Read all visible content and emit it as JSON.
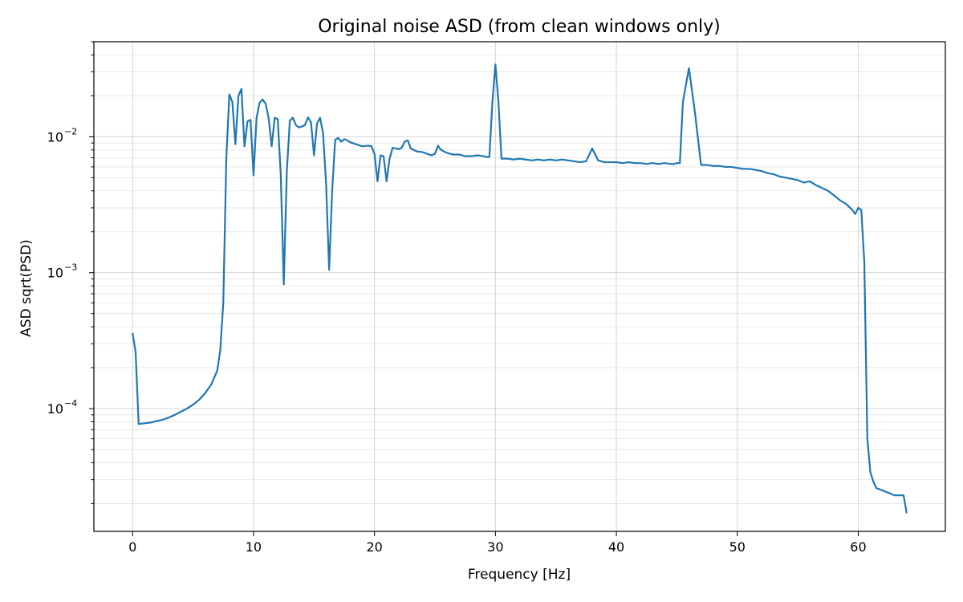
{
  "chart_data": {
    "type": "line",
    "title": "Original noise ASD (from clean windows only)",
    "xlabel": "Frequency [Hz]",
    "ylabel": "ASD sqrt(PSD)",
    "xscale": "linear",
    "yscale": "log",
    "xlim": [
      -3.2,
      67.2
    ],
    "ylim": [
      1.25e-05,
      0.05
    ],
    "xticks": [
      0,
      10,
      20,
      30,
      40,
      50,
      60
    ],
    "yticks": [
      {
        "value": 0.0001,
        "base": "10",
        "exp": "−4"
      },
      {
        "value": 0.001,
        "base": "10",
        "exp": "−3"
      },
      {
        "value": 0.01,
        "base": "10",
        "exp": "−2"
      }
    ],
    "grid": "major and minor",
    "color": "#1f77b4",
    "series": [
      {
        "x": [
          0,
          0.25,
          0.5,
          1,
          1.5,
          2,
          2.5,
          3,
          3.5,
          4,
          4.5,
          5,
          5.5,
          6,
          6.5,
          7,
          7.25,
          7.5,
          7.75,
          8,
          8.25,
          8.5,
          8.75,
          9,
          9.25,
          9.5,
          9.75,
          10,
          10.25,
          10.5,
          10.75,
          11,
          11.25,
          11.5,
          11.75,
          12,
          12.25,
          12.5,
          12.75,
          13,
          13.25,
          13.5,
          13.75,
          14,
          14.25,
          14.5,
          14.75,
          15,
          15.25,
          15.5,
          15.75,
          16,
          16.25,
          16.5,
          16.75,
          17,
          17.25,
          17.5,
          17.75,
          18,
          18.5,
          19,
          19.5,
          19.75,
          20,
          20.25,
          20.5,
          20.75,
          21,
          21.25,
          21.5,
          21.75,
          22,
          22.25,
          22.5,
          22.75,
          23,
          23.5,
          24,
          24.5,
          24.75,
          25,
          25.25,
          25.5,
          26,
          26.5,
          27,
          27.5,
          28,
          28.5,
          29,
          29.25,
          29.5,
          29.75,
          30,
          30.25,
          30.5,
          31,
          31.5,
          32,
          32.5,
          33,
          33.5,
          34,
          34.5,
          35,
          35.5,
          36,
          36.5,
          37,
          37.5,
          38,
          38.5,
          39,
          39.5,
          40,
          40.5,
          41,
          41.5,
          42,
          42.5,
          43,
          43.5,
          44,
          44.5,
          44.75,
          45,
          45.25,
          45.5,
          46,
          46.5,
          47,
          47.5,
          48,
          48.5,
          49,
          49.5,
          50,
          50.5,
          51,
          51.5,
          52,
          52.5,
          53,
          53.5,
          54,
          54.5,
          55,
          55.5,
          56,
          56.5,
          57,
          57.5,
          58,
          58.5,
          59,
          59.5,
          59.75,
          60,
          60.25,
          60.5,
          60.75,
          61,
          61.25,
          61.5,
          62,
          62.5,
          63,
          63.5,
          63.75,
          64
        ],
        "y": [
          0.00036,
          0.00026,
          7.7e-05,
          7.8e-05,
          7.9e-05,
          8.1e-05,
          8.3e-05,
          8.6e-05,
          9e-05,
          9.5e-05,
          0.0001,
          0.000107,
          0.000116,
          0.00013,
          0.00015,
          0.00019,
          0.00027,
          0.0006,
          0.007,
          0.0205,
          0.018,
          0.0088,
          0.02,
          0.0225,
          0.0085,
          0.013,
          0.0133,
          0.0052,
          0.0138,
          0.0178,
          0.0188,
          0.0175,
          0.0137,
          0.0085,
          0.0138,
          0.0135,
          0.0053,
          0.00082,
          0.0055,
          0.0131,
          0.0138,
          0.0122,
          0.0117,
          0.0119,
          0.0122,
          0.0139,
          0.0128,
          0.0073,
          0.0125,
          0.0138,
          0.0106,
          0.0045,
          0.00105,
          0.004,
          0.0095,
          0.0098,
          0.0092,
          0.0096,
          0.0094,
          0.0091,
          0.0088,
          0.0085,
          0.0086,
          0.0085,
          0.0075,
          0.0047,
          0.0073,
          0.0072,
          0.0047,
          0.0069,
          0.0083,
          0.0082,
          0.0081,
          0.0083,
          0.0092,
          0.0094,
          0.0082,
          0.0078,
          0.0077,
          0.0074,
          0.0073,
          0.0075,
          0.0086,
          0.008,
          0.0076,
          0.0074,
          0.0074,
          0.0072,
          0.0072,
          0.0073,
          0.0072,
          0.0071,
          0.0071,
          0.018,
          0.034,
          0.018,
          0.0069,
          0.0069,
          0.0068,
          0.0069,
          0.0068,
          0.0067,
          0.0068,
          0.0067,
          0.0068,
          0.0067,
          0.0068,
          0.0067,
          0.0066,
          0.0065,
          0.0066,
          0.0082,
          0.0067,
          0.0065,
          0.0065,
          0.0065,
          0.0064,
          0.0065,
          0.0064,
          0.0064,
          0.0063,
          0.0064,
          0.0063,
          0.0064,
          0.0063,
          0.0063,
          0.0064,
          0.0064,
          0.018,
          0.032,
          0.015,
          0.0062,
          0.0062,
          0.0061,
          0.0061,
          0.006,
          0.006,
          0.0059,
          0.0058,
          0.0058,
          0.0057,
          0.0056,
          0.0054,
          0.0053,
          0.0051,
          0.005,
          0.0049,
          0.0048,
          0.0046,
          0.0047,
          0.0044,
          0.0042,
          0.004,
          0.0037,
          0.0034,
          0.0032,
          0.0029,
          0.0027,
          0.003,
          0.0029,
          0.0012,
          6e-05,
          3.4e-05,
          2.9e-05,
          2.6e-05,
          2.5e-05,
          2.4e-05,
          2.3e-05,
          2.3e-05,
          2.3e-05,
          1.7e-05
        ]
      }
    ]
  }
}
